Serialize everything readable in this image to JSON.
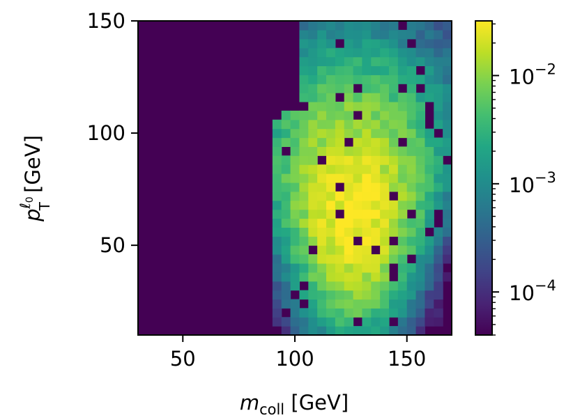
{
  "chart_data": {
    "type": "heatmap",
    "title": "",
    "x_range": [
      30,
      170
    ],
    "y_range": [
      10,
      150
    ],
    "x_bins": 35,
    "y_bins": 35,
    "x_ticks": [
      50,
      100,
      150
    ],
    "y_ticks": [
      50,
      100,
      150
    ],
    "x_tick_labels": [
      "50",
      "100",
      "150"
    ],
    "y_tick_labels": [
      "50",
      "100",
      "150"
    ],
    "xlabel": {
      "main": "m",
      "sub": "coll",
      "unit": " [GeV]"
    },
    "ylabel": {
      "main": "p",
      "sub": "T",
      "sup": "ℓ",
      "supsub": "0",
      "unit": " [GeV]"
    },
    "colorbar": {
      "scale": "log",
      "range": [
        4e-05,
        0.032
      ],
      "colormap": "viridis",
      "major_ticks": [
        0.0001,
        0.001,
        0.01
      ],
      "tick_labels": [
        {
          "base": "10",
          "exp": "−4"
        },
        {
          "base": "10",
          "exp": "−3"
        },
        {
          "base": "10",
          "exp": "−2"
        }
      ]
    },
    "distribution": {
      "peak_x": 126,
      "peak_y": 58,
      "peak_value": 0.032,
      "floor_value": 4e-05,
      "x_low_edge": 92,
      "x_high_edge": 170,
      "description_values": "density peaks near m_coll ≈ 126 GeV, p_T ≈ 58 GeV, falling to ~1e-4 at the edges"
    }
  },
  "colors": {
    "background": "#440154",
    "frame": "#000000"
  }
}
